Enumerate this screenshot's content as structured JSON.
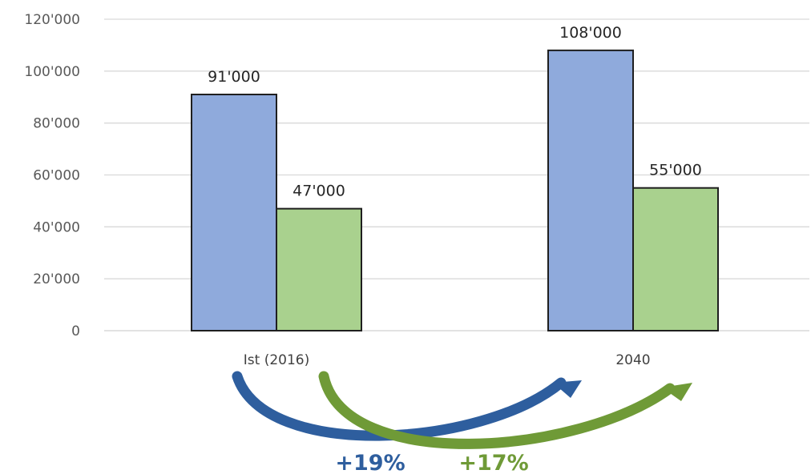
{
  "chart_data": {
    "type": "bar",
    "categories": [
      "Ist (2016)",
      "2040"
    ],
    "series": [
      {
        "values": [
          91000,
          108000
        ],
        "color": "#8faadc",
        "data_labels": [
          "91'000",
          "108'000"
        ]
      },
      {
        "values": [
          47000,
          55000
        ],
        "color": "#a9d18e",
        "data_labels": [
          "47'000",
          "55'000"
        ]
      }
    ],
    "ylim": [
      0,
      120000
    ],
    "y_ticks": [
      {
        "value": 0,
        "label": "0"
      },
      {
        "value": 20000,
        "label": "20'000"
      },
      {
        "value": 40000,
        "label": "40'000"
      },
      {
        "value": 60000,
        "label": "60'000"
      },
      {
        "value": 80000,
        "label": "80'000"
      },
      {
        "value": 100000,
        "label": "100'000"
      },
      {
        "value": 120000,
        "label": "120'000"
      }
    ],
    "grid": true,
    "title": "",
    "xlabel": "",
    "ylabel": "",
    "annotations": [
      {
        "text": "+19%",
        "color": "#2e5e9e",
        "series_index": 0
      },
      {
        "text": "+17%",
        "color": "#6f9a37",
        "series_index": 1
      }
    ]
  }
}
